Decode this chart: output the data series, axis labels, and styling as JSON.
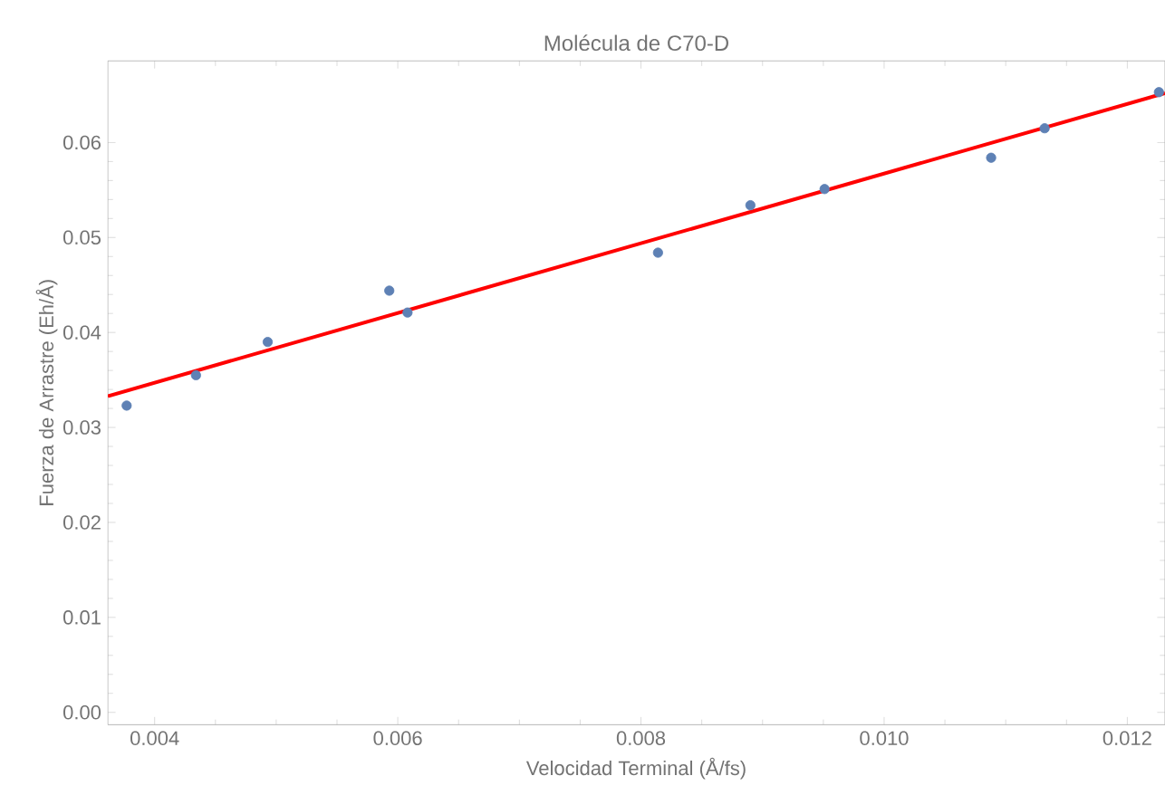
{
  "chart_data": {
    "type": "scatter",
    "title": "Molécula de C70-D",
    "xlabel": "Velocidad Terminal (Å/fs)",
    "ylabel": "Fuerza de Arrastre (Eh/Å)",
    "xlim": [
      0.003615,
      0.01231
    ],
    "ylim": [
      -0.0013,
      0.0686
    ],
    "xticks": [
      0.004,
      0.006,
      0.008,
      {
        "value": 0.01,
        "label": "0.010"
      },
      0.012
    ],
    "yticks": [
      {
        "value": 0,
        "label": "0.00"
      },
      0.01,
      0.02,
      0.03,
      0.04,
      0.05,
      0.06
    ],
    "series": [
      {
        "color": "#5e81b5",
        "marker": "circle",
        "x": [
          0.00377,
          0.00434,
          0.00493,
          0.00593,
          0.00608,
          0.00814,
          0.0089,
          0.00951,
          0.01088,
          0.01132,
          0.01226
        ],
        "values": [
          0.0323,
          0.0355,
          0.039,
          0.0444,
          0.0421,
          0.0484,
          0.0534,
          0.0551,
          0.0584,
          0.0615,
          0.0653
        ]
      },
      {
        "type": "line",
        "color": "#ff0000",
        "line_style": "solid",
        "marker": "none",
        "x": [
          0.003615,
          0.01231
        ],
        "values": [
          0.0333,
          0.0652
        ]
      }
    ]
  }
}
